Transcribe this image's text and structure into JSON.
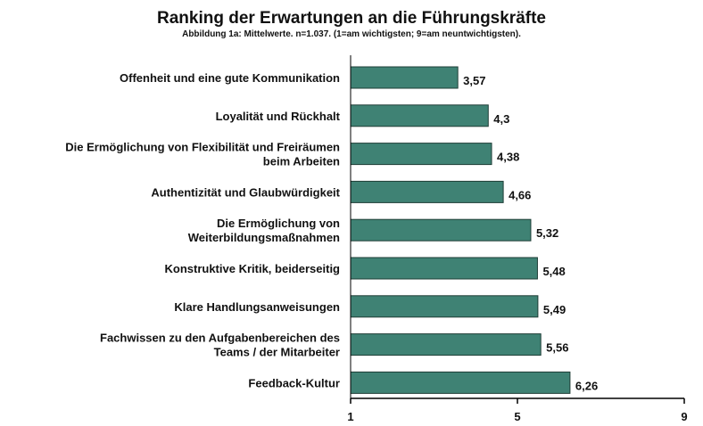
{
  "chart_data": {
    "type": "bar",
    "orientation": "horizontal",
    "title": "Ranking der Erwartungen an die Führungskräfte",
    "subtitle": "Abbildung 1a: Mittelwerte. n=1.037. (1=am wichtigsten; 9=am neuntwichtigsten).",
    "categories": [
      [
        "Offenheit und eine gute Kommunikation"
      ],
      [
        "Loyalität und Rückhalt"
      ],
      [
        "Die Ermöglichung von Flexibilität und Freiräumen",
        "beim Arbeiten"
      ],
      [
        "Authentizität und Glaubwürdigkeit"
      ],
      [
        "Die Ermöglichung von",
        "Weiterbildungsmaßnahmen"
      ],
      [
        "Konstruktive Kritik, beiderseitig"
      ],
      [
        "Klare Handlungsanweisungen"
      ],
      [
        "Fachwissen zu den Aufgabenbereichen des",
        "Teams / der Mitarbeiter"
      ],
      [
        "Feedback-Kultur"
      ]
    ],
    "values": [
      3.57,
      4.3,
      4.38,
      4.66,
      5.32,
      5.48,
      5.49,
      5.56,
      6.26
    ],
    "value_labels": [
      "3,57",
      "4,3",
      "4,38",
      "4,66",
      "5,32",
      "5,48",
      "5,49",
      "5,56",
      "6,26"
    ],
    "xlim": [
      1,
      9
    ],
    "xticks": [
      1,
      5,
      9
    ],
    "xtick_labels": [
      "1",
      "5",
      "9"
    ],
    "xlabel": "",
    "ylabel": "",
    "bar_color": "#3f8274",
    "bar_edge_color": "#1e3d36"
  }
}
